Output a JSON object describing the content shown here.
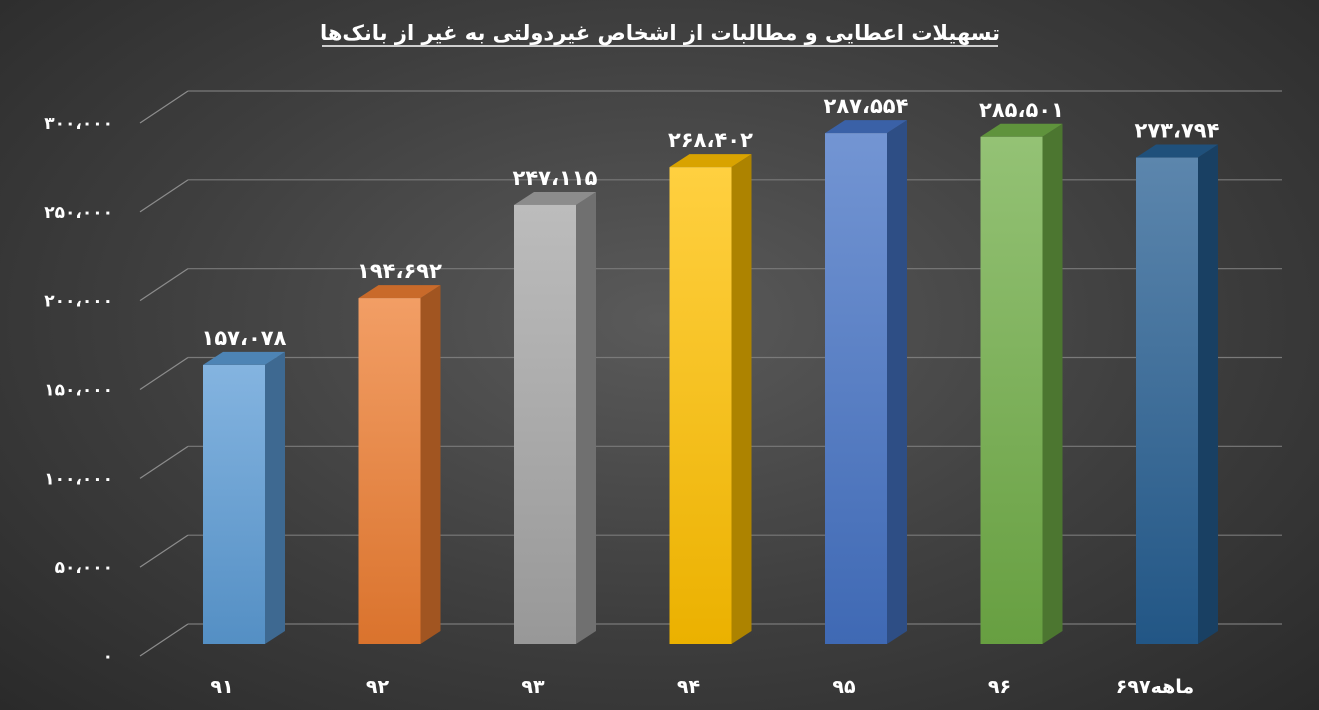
{
  "chart_data": {
    "type": "bar",
    "title": "تسهیلات اعطایی و مطالبات از اشخاص غیردولتی به غیر از بانک‌ها",
    "xlabel": "",
    "ylabel": "",
    "categories": [
      "۹۱",
      "۹۲",
      "۹۳",
      "۹۴",
      "۹۵",
      "۹۶",
      "۶ماهه۹۷"
    ],
    "values": [
      157078,
      194692,
      247115,
      268402,
      287554,
      285501,
      273794
    ],
    "data_labels": [
      "۱۵۷،۰۷۸",
      "۱۹۴،۶۹۲",
      "۲۴۷،۱۱۵",
      "۲۶۸،۴۰۲",
      "۲۸۷،۵۵۴",
      "۲۸۵،۵۰۱",
      "۲۷۳،۷۹۴"
    ],
    "ylim": [
      0,
      300000
    ],
    "y_ticks": [
      0,
      50000,
      100000,
      150000,
      200000,
      250000,
      300000
    ],
    "y_tick_labels": [
      "۰",
      "۵۰،۰۰۰",
      "۱۰۰،۰۰۰",
      "۱۵۰،۰۰۰",
      "۲۰۰،۰۰۰",
      "۲۵۰،۰۰۰",
      "۳۰۰،۰۰۰"
    ],
    "grid": true,
    "legend": "none",
    "style": "3d-column",
    "colors": [
      "#5b9bd5",
      "#ed7d31",
      "#a5a5a5",
      "#ffc000",
      "#4472c4",
      "#70ad47",
      "#255e91"
    ]
  }
}
